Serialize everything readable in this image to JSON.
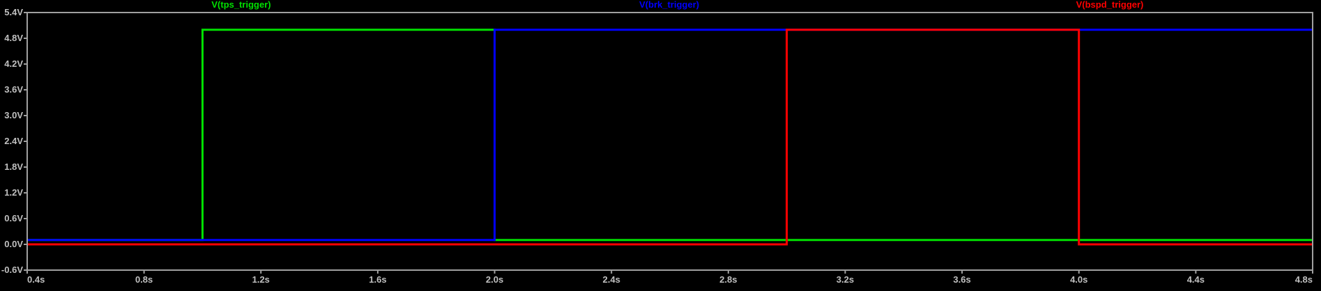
{
  "chart_data": {
    "type": "line",
    "background": "#000000",
    "axis_color": "#a0a0a0",
    "x_unit": "s",
    "y_unit": "V",
    "xlim": [
      0.4,
      4.8
    ],
    "ylim": [
      -0.6,
      5.4
    ],
    "x_ticks": [
      0.4,
      0.8,
      1.2,
      1.6,
      2.0,
      2.4,
      2.8,
      3.2,
      3.6,
      4.0,
      4.4,
      4.8
    ],
    "x_tick_labels": [
      "0.4s",
      "0.8s",
      "1.2s",
      "1.6s",
      "2.0s",
      "2.4s",
      "2.8s",
      "3.2s",
      "3.6s",
      "4.0s",
      "4.4s",
      "4.8s"
    ],
    "y_ticks": [
      -0.6,
      0.0,
      0.6,
      1.2,
      1.8,
      2.4,
      3.0,
      3.6,
      4.2,
      4.8,
      5.4
    ],
    "y_tick_labels": [
      "-0.6V",
      "0.0V",
      "0.6V",
      "1.2V",
      "1.8V",
      "2.4V",
      "3.0V",
      "3.6V",
      "4.2V",
      "4.8V",
      "5.4V"
    ],
    "grid": false,
    "legend_placement": "top",
    "series": [
      {
        "name": "V(tps_trigger)",
        "color": "#00e000",
        "x": [
          0.4,
          1.0,
          1.0,
          1.0,
          1.0,
          2.0,
          2.0,
          2.0,
          2.0,
          4.8
        ],
        "y": [
          0.1,
          0.1,
          2.55,
          2.55,
          5.0,
          5.0,
          2.55,
          2.55,
          0.1,
          0.1
        ]
      },
      {
        "name": "V(brk_trigger)",
        "color": "#0000ff",
        "x": [
          0.4,
          2.0,
          2.0,
          2.0,
          2.0,
          4.8
        ],
        "y": [
          0.1,
          0.1,
          2.55,
          2.55,
          5.0,
          5.0
        ]
      },
      {
        "name": "V(bspd_trigger)",
        "color": "#ff0000",
        "x": [
          0.4,
          3.0,
          3.0,
          4.0,
          4.0,
          4.8
        ],
        "y": [
          0.0,
          0.0,
          5.0,
          5.0,
          0.0,
          0.0
        ]
      }
    ]
  }
}
